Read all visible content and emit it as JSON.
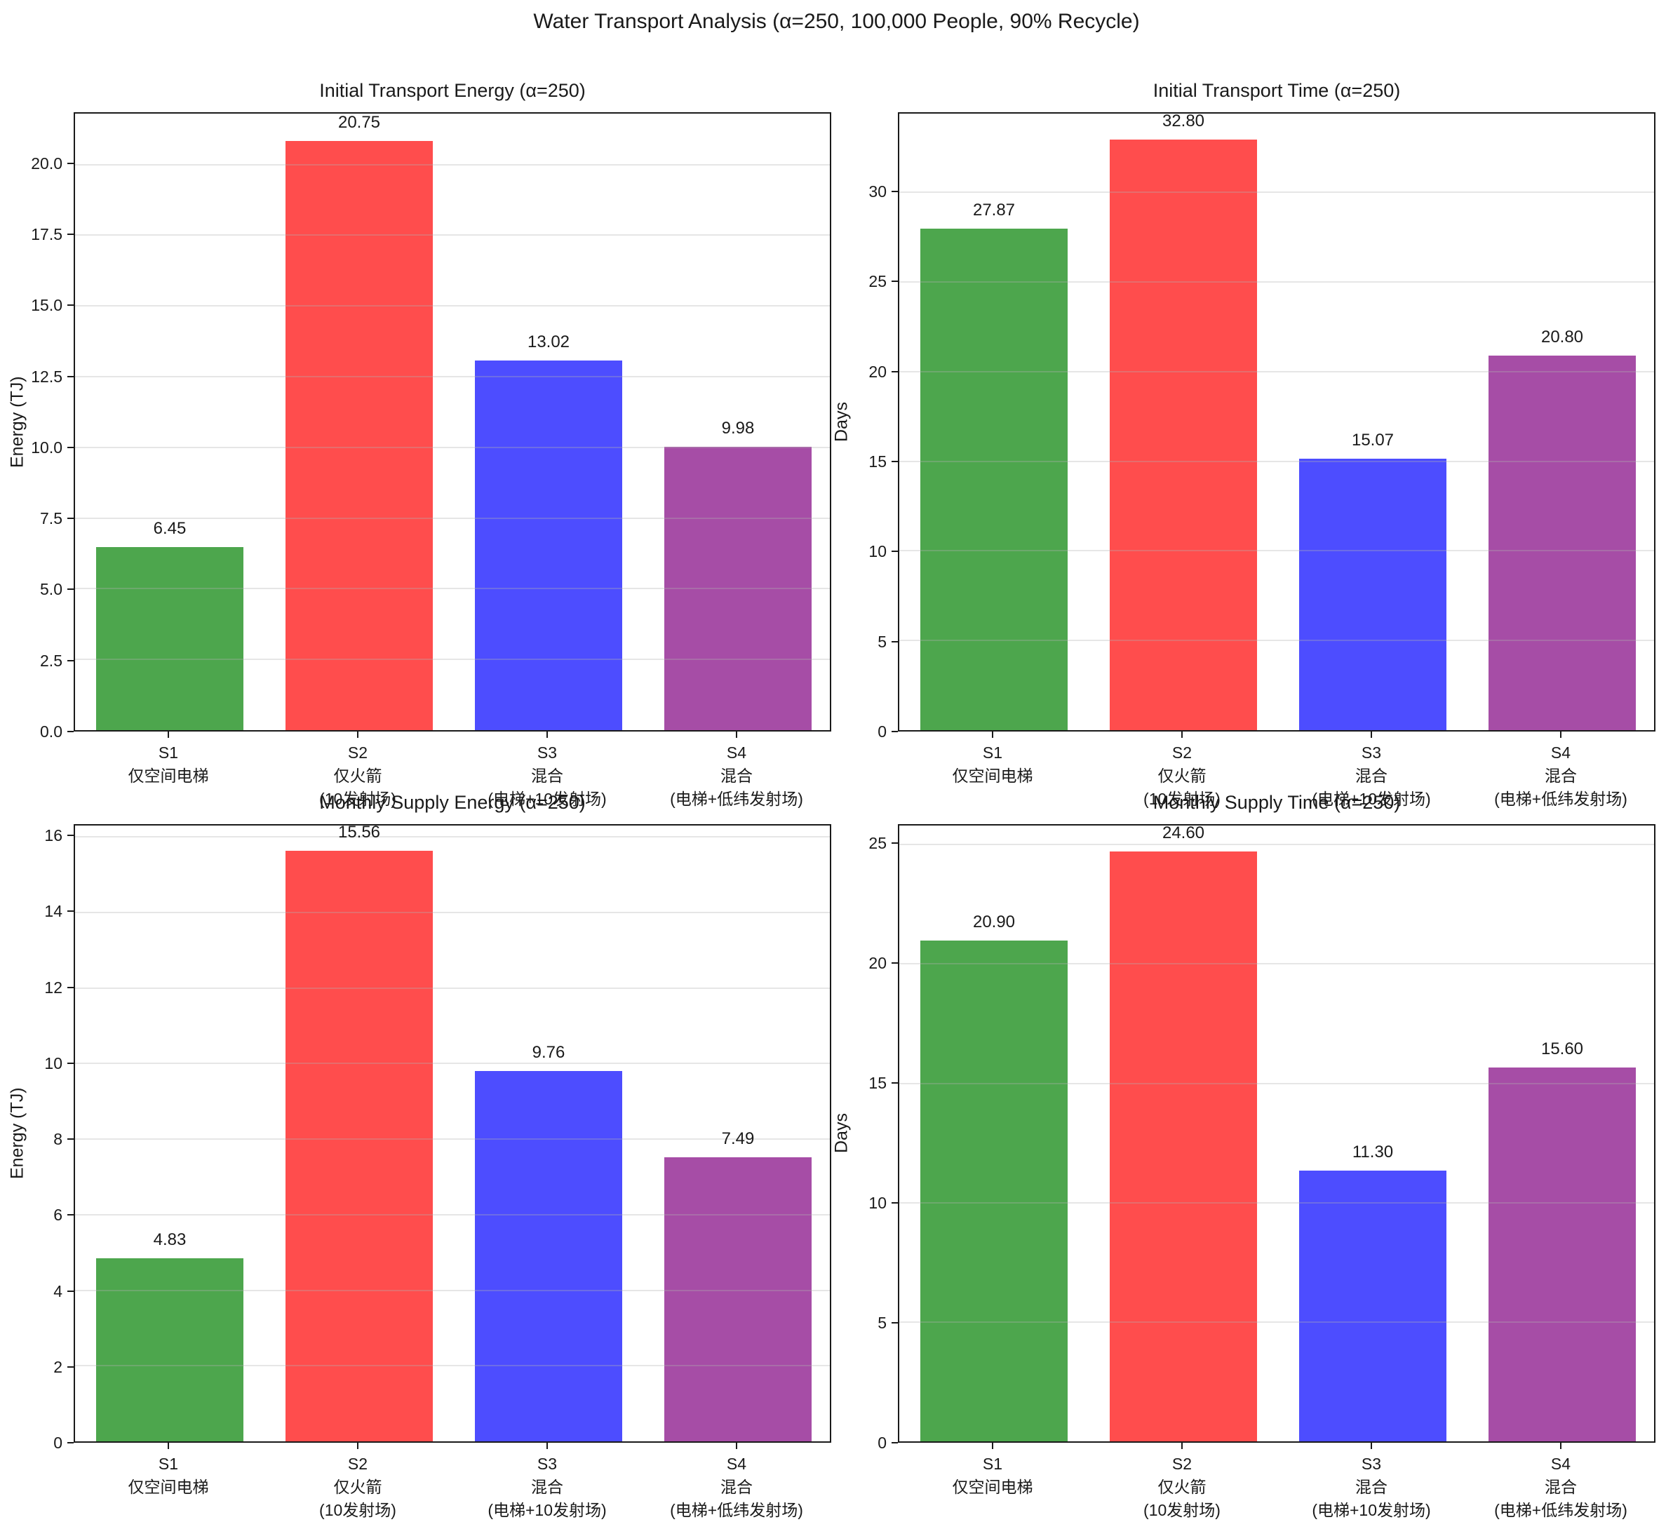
{
  "figure_title": "Water Transport Analysis (α=250, 100,000 People, 90% Recycle)",
  "bar_colors": [
    "#4DA64D",
    "#FF4D4D",
    "#4D4DFF",
    "#A64DA6"
  ],
  "grid_color": "#b0b0b0",
  "spine_color": "#1a1a1a",
  "chart_data": [
    {
      "type": "bar",
      "title": "Initial Transport Energy (α=250)",
      "xlabel": "",
      "ylabel": "Energy (TJ)",
      "categories": [
        "S1 仅空间电梯",
        "S2 仅火箭 (10发射场)",
        "S3 混合 (电梯+10发射场)",
        "S4 混合 (电梯+低纬发射场)"
      ],
      "category_lines": [
        [
          "S1",
          "仅空间电梯"
        ],
        [
          "S2",
          "仅火箭",
          "(10发射场)"
        ],
        [
          "S3",
          "混合",
          "(电梯+10发射场)"
        ],
        [
          "S4",
          "混合",
          "(电梯+低纬发射场)"
        ]
      ],
      "values": [
        6.45,
        20.75,
        13.02,
        9.98
      ],
      "value_labels": [
        "6.45",
        "20.75",
        "13.02",
        "9.98"
      ],
      "yticks": [
        0.0,
        2.5,
        5.0,
        7.5,
        10.0,
        12.5,
        15.0,
        17.5,
        20.0
      ],
      "ytick_labels": [
        "0.0",
        "2.5",
        "5.0",
        "7.5",
        "10.0",
        "12.5",
        "15.0",
        "17.5",
        "20.0"
      ],
      "ylim": [
        0,
        21.8
      ],
      "grid": true,
      "legend": null
    },
    {
      "type": "bar",
      "title": "Initial Transport Time (α=250)",
      "xlabel": "",
      "ylabel": "Days",
      "categories": [
        "S1 仅空间电梯",
        "S2 仅火箭 (10发射场)",
        "S3 混合 (电梯+10发射场)",
        "S4 混合 (电梯+低纬发射场)"
      ],
      "category_lines": [
        [
          "S1",
          "仅空间电梯"
        ],
        [
          "S2",
          "仅火箭",
          "(10发射场)"
        ],
        [
          "S3",
          "混合",
          "(电梯+10发射场)"
        ],
        [
          "S4",
          "混合",
          "(电梯+低纬发射场)"
        ]
      ],
      "values": [
        27.87,
        32.8,
        15.07,
        20.8
      ],
      "value_labels": [
        "27.87",
        "32.80",
        "15.07",
        "20.80"
      ],
      "yticks": [
        0,
        5,
        10,
        15,
        20,
        25,
        30
      ],
      "ytick_labels": [
        "0",
        "5",
        "10",
        "15",
        "20",
        "25",
        "30"
      ],
      "ylim": [
        0,
        34.4
      ],
      "grid": true,
      "legend": null
    },
    {
      "type": "bar",
      "title": "Monthly Supply Energy (α=250)",
      "xlabel": "",
      "ylabel": "Energy (TJ)",
      "categories": [
        "S1 仅空间电梯",
        "S2 仅火箭 (10发射场)",
        "S3 混合 (电梯+10发射场)",
        "S4 混合 (电梯+低纬发射场)"
      ],
      "category_lines": [
        [
          "S1",
          "仅空间电梯"
        ],
        [
          "S2",
          "仅火箭",
          "(10发射场)"
        ],
        [
          "S3",
          "混合",
          "(电梯+10发射场)"
        ],
        [
          "S4",
          "混合",
          "(电梯+低纬发射场)"
        ]
      ],
      "values": [
        4.83,
        15.56,
        9.76,
        7.49
      ],
      "value_labels": [
        "4.83",
        "15.56",
        "9.76",
        "7.49"
      ],
      "yticks": [
        0,
        2,
        4,
        6,
        8,
        10,
        12,
        14,
        16
      ],
      "ytick_labels": [
        "0",
        "2",
        "4",
        "6",
        "8",
        "10",
        "12",
        "14",
        "16"
      ],
      "ylim": [
        0,
        16.3
      ],
      "grid": true,
      "legend": null
    },
    {
      "type": "bar",
      "title": "Monthly Supply Time (α=250)",
      "xlabel": "",
      "ylabel": "Days",
      "categories": [
        "S1 仅空间电梯",
        "S2 仅火箭 (10发射场)",
        "S3 混合 (电梯+10发射场)",
        "S4 混合 (电梯+低纬发射场)"
      ],
      "category_lines": [
        [
          "S1",
          "仅空间电梯"
        ],
        [
          "S2",
          "仅火箭",
          "(10发射场)"
        ],
        [
          "S3",
          "混合",
          "(电梯+10发射场)"
        ],
        [
          "S4",
          "混合",
          "(电梯+低纬发射场)"
        ]
      ],
      "values": [
        20.9,
        24.6,
        11.3,
        15.6
      ],
      "value_labels": [
        "20.90",
        "24.60",
        "11.30",
        "15.60"
      ],
      "yticks": [
        0,
        5,
        10,
        15,
        20,
        25
      ],
      "ytick_labels": [
        "0",
        "5",
        "10",
        "15",
        "20",
        "25"
      ],
      "ylim": [
        0,
        25.8
      ],
      "grid": true,
      "legend": null
    }
  ]
}
